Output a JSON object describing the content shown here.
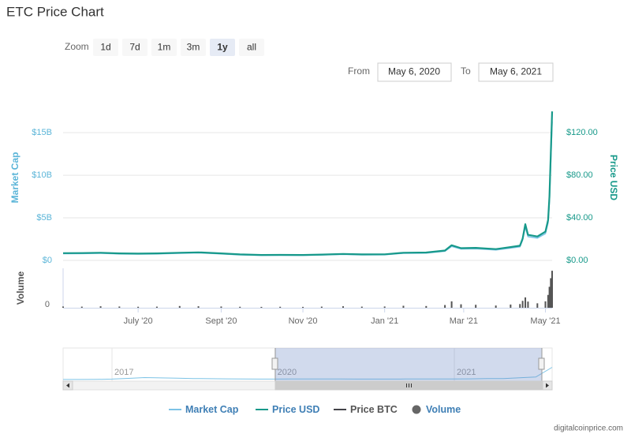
{
  "title": "ETC Price Chart",
  "zoom": {
    "label": "Zoom",
    "buttons": [
      "1d",
      "7d",
      "1m",
      "3m",
      "1y",
      "all"
    ],
    "selected": 4
  },
  "range": {
    "from_label": "From",
    "from": "May 6, 2020",
    "to_label": "To",
    "to": "May 6, 2021"
  },
  "credit": "digitalcoinprice.com",
  "chart_data": [
    {
      "type": "line",
      "ylabel": "Market Cap",
      "y2label": "Price USD",
      "x": [
        "2020-05-06",
        "2020-05-20",
        "2020-06-03",
        "2020-06-17",
        "2020-07-01",
        "2020-07-15",
        "2020-08-01",
        "2020-08-15",
        "2020-09-01",
        "2020-09-15",
        "2020-10-01",
        "2020-10-15",
        "2020-11-01",
        "2020-11-15",
        "2020-12-01",
        "2020-12-15",
        "2021-01-01",
        "2021-01-15",
        "2021-02-01",
        "2021-02-15",
        "2021-02-20",
        "2021-02-27",
        "2021-03-10",
        "2021-03-25",
        "2021-04-05",
        "2021-04-12",
        "2021-04-14",
        "2021-04-16",
        "2021-04-18",
        "2021-04-25",
        "2021-05-01",
        "2021-05-03",
        "2021-05-04",
        "2021-05-05",
        "2021-05-06"
      ],
      "xlim": [
        "2020-05-06",
        "2021-05-06"
      ],
      "ylim": [
        0,
        19000000000
      ],
      "yticks": [
        {
          "value": 0,
          "label": "$0"
        },
        {
          "value": 5000000000,
          "label": "$5B"
        },
        {
          "value": 10000000000,
          "label": "$10B"
        },
        {
          "value": 15000000000,
          "label": "$15B"
        }
      ],
      "y2lim": [
        0,
        152
      ],
      "y2ticks": [
        {
          "value": 0,
          "label": "$0.00"
        },
        {
          "value": 40,
          "label": "$40.00"
        },
        {
          "value": 80,
          "label": "$80.00"
        },
        {
          "value": 120,
          "label": "$120.00"
        }
      ],
      "grid": true,
      "series": [
        {
          "name": "Market Cap",
          "color": "#7cc3e6",
          "values": [
            792200000,
            803850000,
            838800000,
            768900000,
            745600000,
            768900000,
            838800000,
            885400000,
            768900000,
            652400000,
            594150000,
            605800000,
            594150000,
            640750000,
            710650000,
            652400000,
            664050000,
            838800000,
            862100000,
            1083450000,
            1654300000,
            1339750000,
            1374700000,
            1234900000,
            1456250000,
            1607700000,
            2388250000,
            3961000000,
            2796000000,
            2621250000,
            3145500000,
            4427000000,
            6990000000,
            11650000000,
            16310000000
          ]
        },
        {
          "name": "Price USD",
          "color": "#17998a",
          "axis": "y2",
          "values": [
            6.8,
            6.9,
            7.2,
            6.6,
            6.4,
            6.6,
            7.2,
            7.6,
            6.6,
            5.6,
            5.1,
            5.2,
            5.1,
            5.5,
            6.1,
            5.6,
            5.7,
            7.2,
            7.4,
            9.3,
            14.2,
            11.5,
            11.8,
            10.6,
            12.5,
            13.8,
            20.5,
            34.0,
            24.0,
            22.5,
            27.0,
            38.0,
            60.0,
            100.0,
            140.0
          ]
        },
        {
          "name": "Price BTC",
          "color": "#434348",
          "visible": false
        }
      ]
    },
    {
      "type": "bar",
      "ylabel": "Volume",
      "x": [
        "2020-05-06",
        "2020-05-20",
        "2020-06-03",
        "2020-06-17",
        "2020-07-01",
        "2020-07-15",
        "2020-08-01",
        "2020-08-15",
        "2020-09-01",
        "2020-09-15",
        "2020-10-01",
        "2020-10-15",
        "2020-11-01",
        "2020-11-15",
        "2020-12-01",
        "2020-12-15",
        "2021-01-01",
        "2021-01-15",
        "2021-02-01",
        "2021-02-15",
        "2021-02-20",
        "2021-02-27",
        "2021-03-10",
        "2021-03-25",
        "2021-04-05",
        "2021-04-12",
        "2021-04-14",
        "2021-04-16",
        "2021-04-18",
        "2021-04-25",
        "2021-05-01",
        "2021-05-03",
        "2021-05-04",
        "2021-05-05",
        "2021-05-06"
      ],
      "xlim": [
        "2020-05-06",
        "2021-05-06"
      ],
      "xticks": [
        {
          "value": "2020-07-01",
          "label": "July '20"
        },
        {
          "value": "2020-09-01",
          "label": "Sept '20"
        },
        {
          "value": "2020-11-01",
          "label": "Nov '20"
        },
        {
          "value": "2021-01-01",
          "label": "Jan '21"
        },
        {
          "value": "2021-03-01",
          "label": "Mar '21"
        },
        {
          "value": "2021-05-01",
          "label": "May '21"
        }
      ],
      "ylim": [
        0,
        16000000000
      ],
      "yticks": [
        0
      ],
      "series": [
        {
          "name": "Volume",
          "color": "#555555",
          "values": [
            500000000,
            450000000,
            600000000,
            500000000,
            400000000,
            450000000,
            700000000,
            600000000,
            500000000,
            400000000,
            350000000,
            400000000,
            350000000,
            450000000,
            600000000,
            450000000,
            500000000,
            800000000,
            700000000,
            1100000000,
            2600000000,
            1400000000,
            1200000000,
            900000000,
            1300000000,
            1500000000,
            2800000000,
            4200000000,
            2500000000,
            1800000000,
            2600000000,
            5200000000,
            8500000000,
            12000000000,
            15000000000
          ]
        }
      ]
    },
    {
      "type": "line",
      "categories": [
        null,
        null,
        null,
        "2017",
        null,
        null,
        null,
        null,
        null,
        null,
        null,
        null,
        null,
        "2020",
        null,
        null,
        null,
        null,
        null,
        null,
        null,
        null,
        null,
        null,
        "2021",
        null,
        null,
        null,
        null,
        null,
        null
      ],
      "ylim": [
        0,
        40000000000
      ],
      "series": [
        {
          "color": "#7cc3e6",
          "values": [
            100000000,
            100000000,
            200000000,
            600000000,
            1600000000,
            2600000000,
            2200000000,
            1800000000,
            1400000000,
            1200000000,
            900000000,
            800000000,
            600000000,
            600000000,
            700000000,
            700000000,
            800000000,
            700000000,
            600000000,
            600000000,
            600000000,
            700000000,
            700000000,
            800000000,
            800000000,
            900000000,
            1300000000,
            1400000000,
            2400000000,
            3400000000,
            16300000000
          ]
        }
      ]
    }
  ]
}
